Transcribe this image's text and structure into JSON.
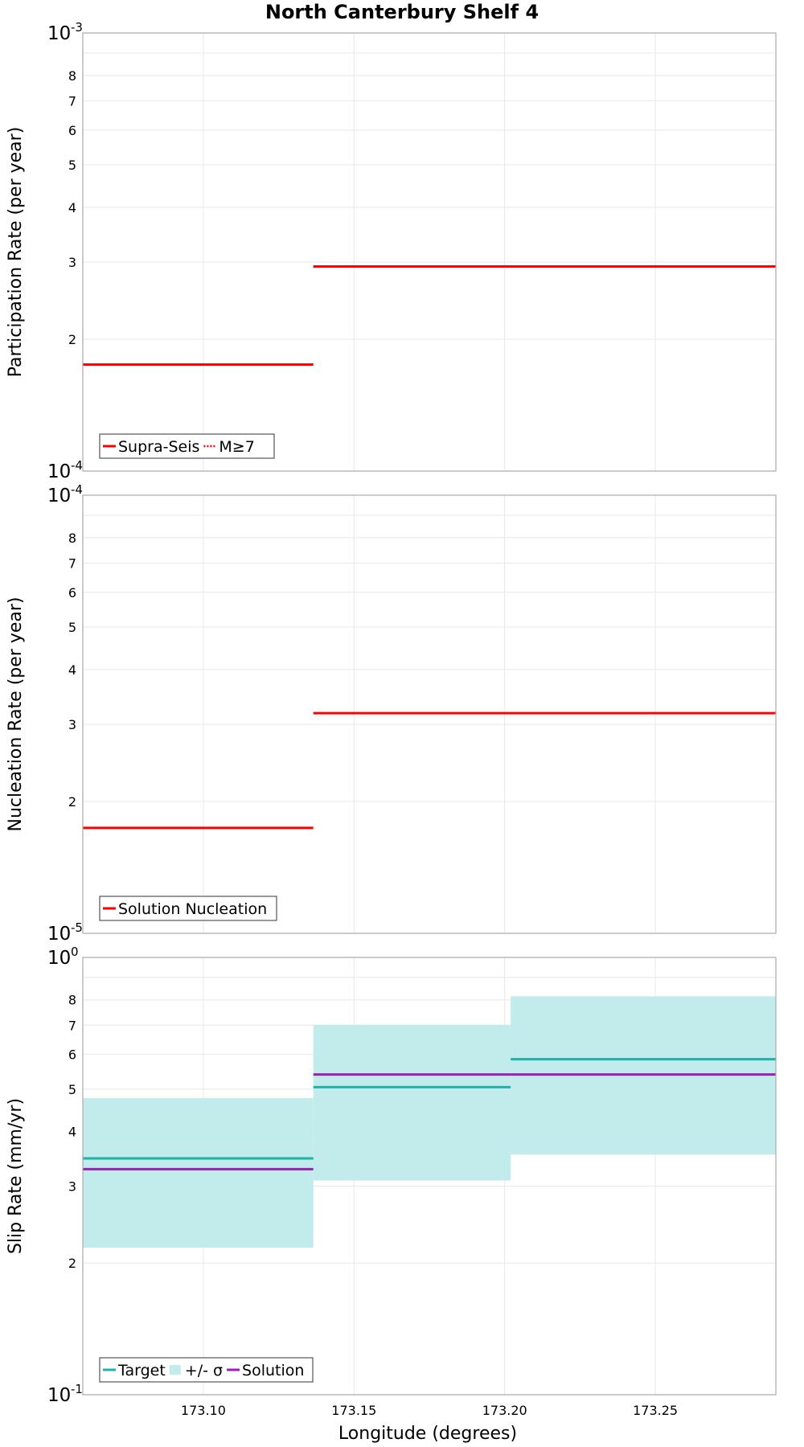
{
  "chart_data": {
    "title": "North Canterbury Shelf 4",
    "xlabel": "Longitude (degrees)",
    "xlim": [
      173.06,
      173.29
    ],
    "xticks": [
      173.1,
      173.15,
      173.2,
      173.25
    ],
    "xtick_labels": [
      "173.10",
      "173.15",
      "173.20",
      "173.25"
    ],
    "panels": [
      {
        "type": "step-line",
        "ylabel": "Participation Rate (per year)",
        "yscale": "log",
        "ylim": [
          0.0001,
          0.001
        ],
        "decade_labels": [
          {
            "value": 0.001,
            "base": "10",
            "exp": "-3"
          },
          {
            "value": 0.0001,
            "base": "10",
            "exp": "-4"
          }
        ],
        "minor_ticks": [
          {
            "value": 0.0002,
            "label": "2"
          },
          {
            "value": 0.0003,
            "label": "3"
          },
          {
            "value": 0.0004,
            "label": "4"
          },
          {
            "value": 0.0005,
            "label": "5"
          },
          {
            "value": 0.0006,
            "label": "6"
          },
          {
            "value": 0.0007,
            "label": "7"
          },
          {
            "value": 0.0008,
            "label": "8"
          }
        ],
        "series": [
          {
            "name": "Supra-Seis",
            "style": "solid",
            "color": "#ff0000",
            "segments": [
              [
                173.06,
                173.1365,
                0.000175
              ],
              [
                173.1365,
                173.29,
                0.000293
              ]
            ]
          },
          {
            "name": "M≥7",
            "style": "dotted",
            "color": "#ff0000",
            "segments": [
              [
                173.06,
                173.1365,
                0.000175
              ],
              [
                173.1365,
                173.29,
                0.000293
              ]
            ]
          }
        ]
      },
      {
        "type": "step-line",
        "ylabel": "Nucleation Rate (per year)",
        "yscale": "log",
        "ylim": [
          1e-05,
          0.0001
        ],
        "decade_labels": [
          {
            "value": 0.0001,
            "base": "10",
            "exp": "-4"
          },
          {
            "value": 1e-05,
            "base": "10",
            "exp": "-5"
          }
        ],
        "minor_ticks": [
          {
            "value": 2e-05,
            "label": "2"
          },
          {
            "value": 3e-05,
            "label": "3"
          },
          {
            "value": 4e-05,
            "label": "4"
          },
          {
            "value": 5e-05,
            "label": "5"
          },
          {
            "value": 6e-05,
            "label": "6"
          },
          {
            "value": 7e-05,
            "label": "7"
          },
          {
            "value": 8e-05,
            "label": "8"
          }
        ],
        "series": [
          {
            "name": "Solution Nucleation",
            "style": "solid",
            "color": "#ff0000",
            "segments": [
              [
                173.06,
                173.1365,
                1.74e-05
              ],
              [
                173.1365,
                173.29,
                3.18e-05
              ]
            ]
          }
        ]
      },
      {
        "type": "step-line",
        "ylabel": "Slip Rate (mm/yr)",
        "yscale": "log",
        "ylim": [
          0.1,
          1
        ],
        "decade_labels": [
          {
            "value": 1,
            "base": "10",
            "exp": "0"
          },
          {
            "value": 0.1,
            "base": "10",
            "exp": "-1"
          }
        ],
        "minor_ticks": [
          {
            "value": 0.2,
            "label": "2"
          },
          {
            "value": 0.3,
            "label": "3"
          },
          {
            "value": 0.4,
            "label": "4"
          },
          {
            "value": 0.5,
            "label": "5"
          },
          {
            "value": 0.6,
            "label": "6"
          },
          {
            "value": 0.7,
            "label": "7"
          },
          {
            "value": 0.8,
            "label": "8"
          }
        ],
        "bands": [
          {
            "name": "+/- σ",
            "color": "#c2ebeb",
            "segments": [
              [
                173.06,
                173.1365,
                0.217,
                0.477
              ],
              [
                173.1365,
                173.202,
                0.309,
                0.701
              ],
              [
                173.202,
                173.29,
                0.354,
                0.815
              ]
            ]
          }
        ],
        "series": [
          {
            "name": "Target",
            "style": "solid",
            "color": "#1fb1aa",
            "segments": [
              [
                173.06,
                173.1365,
                0.347
              ],
              [
                173.1365,
                173.202,
                0.505
              ],
              [
                173.202,
                173.29,
                0.585
              ]
            ]
          },
          {
            "name": "Solution",
            "style": "solid",
            "color": "#9b1fb6",
            "segments": [
              [
                173.06,
                173.1365,
                0.328
              ],
              [
                173.1365,
                173.29,
                0.54
              ]
            ]
          }
        ],
        "legend_order": [
          "Target",
          "+/- σ",
          "Solution"
        ]
      }
    ]
  }
}
